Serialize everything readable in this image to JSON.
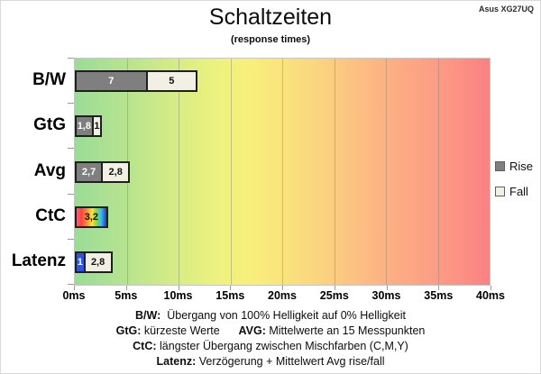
{
  "header": {
    "title": "Schaltzeiten",
    "subtitle": "(response times)",
    "device_label": "Asus XG27UQ"
  },
  "chart_data": {
    "type": "bar",
    "orientation": "horizontal",
    "title": "Schaltzeiten",
    "subtitle": "(response times)",
    "xlim": [
      0,
      40
    ],
    "x_unit": "ms",
    "x_ticks": [
      "0ms",
      "5ms",
      "10ms",
      "15ms",
      "20ms",
      "25ms",
      "30ms",
      "35ms",
      "40ms"
    ],
    "grid": true,
    "legend_position": "right",
    "legend": [
      {
        "label": "Rise",
        "style": "rise"
      },
      {
        "label": "Fall",
        "style": "fall"
      }
    ],
    "categories": [
      "B/W",
      "GtG",
      "Avg",
      "CtC",
      "Latenz"
    ],
    "rows": [
      {
        "category": "B/W",
        "segments": [
          {
            "label": "7",
            "value": 7,
            "style": "rise"
          },
          {
            "label": "5",
            "value": 5,
            "style": "fall"
          }
        ]
      },
      {
        "category": "GtG",
        "segments": [
          {
            "label": "1,8",
            "value": 1.8,
            "style": "rise"
          },
          {
            "label": "1",
            "value": 1,
            "style": "fall"
          }
        ]
      },
      {
        "category": "Avg",
        "segments": [
          {
            "label": "2,7",
            "value": 2.7,
            "style": "rise"
          },
          {
            "label": "2,8",
            "value": 2.8,
            "style": "fall"
          }
        ]
      },
      {
        "category": "CtC",
        "segments": [
          {
            "label": "3,2",
            "value": 3.2,
            "style": "rainbow"
          }
        ]
      },
      {
        "category": "Latenz",
        "segments": [
          {
            "label": "1",
            "value": 1,
            "style": "latency"
          },
          {
            "label": "2,8",
            "value": 2.8,
            "style": "fall"
          }
        ]
      }
    ],
    "colors": {
      "rise": "#7f7f7f",
      "fall": "#f2efe4",
      "latency": "#2f55e6",
      "bar_border": "#1f1f1f",
      "scale_green": "#9adc97",
      "scale_yellow": "#f8ef7b",
      "scale_red": "#fb8183"
    }
  },
  "footnotes": [
    [
      {
        "text": "B/W:",
        "bold": true
      },
      {
        "text": "  Übergang von 100% Helligkeit auf 0% Helligkeit",
        "bold": false
      }
    ],
    [
      {
        "text": "GtG:",
        "bold": true
      },
      {
        "text": " kürzeste Werte      ",
        "bold": false
      },
      {
        "text": "AVG:",
        "bold": true
      },
      {
        "text": " Mittelwerte an 15 Messpunkten",
        "bold": false
      }
    ],
    [
      {
        "text": "CtC:",
        "bold": true
      },
      {
        "text": " längster Übergang zwischen Mischfarben (C,M,Y)",
        "bold": false
      }
    ],
    [
      {
        "text": "Latenz:",
        "bold": true
      },
      {
        "text": " Verzögerung + Mittelwert Avg rise/fall",
        "bold": false
      }
    ]
  ]
}
